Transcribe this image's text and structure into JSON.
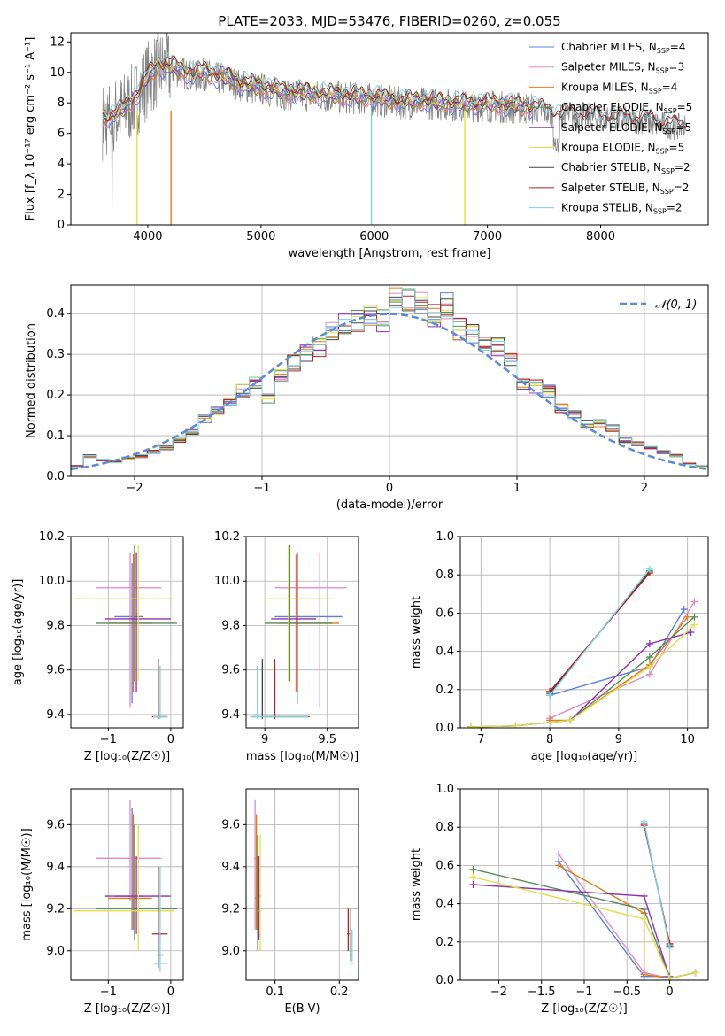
{
  "chart_data": [
    {
      "type": "line",
      "title": "PLATE=2033, MJD=53476, FIBERID=0260, z=0.055",
      "xlabel": "wavelength [Angstrom, rest frame]",
      "ylabel": "Flux [f_λ 10⁻¹⁷ erg cm⁻² s⁻¹ A⁻¹]",
      "xlim": [
        3320,
        8950
      ],
      "ylim": [
        0,
        12.6
      ],
      "xticks": [
        4000,
        5000,
        6000,
        7000,
        8000
      ],
      "yticks": [
        0,
        2,
        4,
        6,
        8,
        10,
        12
      ],
      "grid": false,
      "legend_position": "top-right",
      "data_color": "#808080",
      "data_x": [
        3600,
        3700,
        3800,
        3900,
        4000,
        4100,
        4200,
        4300,
        4400,
        4500,
        4600,
        4700,
        4800,
        4900,
        5000,
        5200,
        5400,
        5600,
        5800,
        6000,
        6200,
        6400,
        6600,
        6800,
        7000,
        7200,
        7400,
        7600,
        7800,
        8000,
        8200,
        8400,
        8500,
        8700
      ],
      "data_y": [
        6.8,
        7.1,
        7.6,
        8.3,
        9.6,
        10.3,
        10.2,
        10.0,
        9.7,
        9.9,
        9.6,
        9.5,
        9.2,
        9.0,
        8.9,
        8.6,
        8.5,
        8.4,
        8.3,
        8.2,
        8.0,
        8.0,
        7.9,
        7.8,
        7.8,
        7.7,
        7.6,
        7.2,
        7.1,
        7.0,
        6.9,
        6.8,
        6.6,
        6.4
      ],
      "series": [
        {
          "name": "Chabrier MILES, N_SSP=4",
          "color": "#5b7fd6"
        },
        {
          "name": "Salpeter MILES, N_SSP=3",
          "color": "#e08ac4"
        },
        {
          "name": "Kroupa MILES, N_SSP=4",
          "color": "#e07b1a"
        },
        {
          "name": "Chabrier ELODIE, N_SSP=5",
          "color": "#5a8a5a"
        },
        {
          "name": "Salpeter ELODIE, N_SSP=5",
          "color": "#8e2fb2"
        },
        {
          "name": "Kroupa ELODIE, N_SSP=5",
          "color": "#dfe04a"
        },
        {
          "name": "Chabrier STELIB, N_SSP=2",
          "color": "#444444"
        },
        {
          "name": "Salpeter STELIB, N_SSP=2",
          "color": "#b22222"
        },
        {
          "name": "Kroupa STELIB, N_SSP=2",
          "color": "#7fd3dd"
        }
      ]
    },
    {
      "type": "step",
      "xlabel": "(data-model)/error",
      "ylabel": "Normed distribution",
      "xlim": [
        -2.5,
        2.5
      ],
      "ylim": [
        0,
        0.47
      ],
      "xticks": [
        -2,
        -1,
        0,
        1,
        2
      ],
      "yticks": [
        0.0,
        0.1,
        0.2,
        0.3,
        0.4
      ],
      "grid": true,
      "legend": "𝒩(0, 1)",
      "legend_position": "top-right",
      "curve_color": "#5b8ad6",
      "bins_left": [
        -2.5,
        -2.4,
        -2.3,
        -2.2,
        -2.1,
        -2.0,
        -1.9,
        -1.8,
        -1.7,
        -1.6,
        -1.5,
        -1.4,
        -1.3,
        -1.2,
        -1.1,
        -1.0,
        -0.9,
        -0.8,
        -0.7,
        -0.6,
        -0.5,
        -0.4,
        -0.3,
        -0.2,
        -0.1,
        0.0,
        0.1,
        0.2,
        0.3,
        0.4,
        0.5,
        0.6,
        0.7,
        0.8,
        0.9,
        1.0,
        1.1,
        1.2,
        1.3,
        1.4,
        1.5,
        1.6,
        1.7,
        1.8,
        1.9,
        2.0,
        2.1,
        2.2,
        2.3,
        2.4
      ],
      "base_values": [
        0.025,
        0.05,
        0.04,
        0.035,
        0.045,
        0.05,
        0.06,
        0.07,
        0.09,
        0.11,
        0.14,
        0.16,
        0.19,
        0.21,
        0.23,
        0.19,
        0.25,
        0.28,
        0.3,
        0.32,
        0.36,
        0.37,
        0.38,
        0.39,
        0.38,
        0.44,
        0.43,
        0.42,
        0.4,
        0.42,
        0.36,
        0.35,
        0.33,
        0.32,
        0.29,
        0.23,
        0.22,
        0.21,
        0.17,
        0.15,
        0.13,
        0.13,
        0.12,
        0.09,
        0.08,
        0.07,
        0.06,
        0.05,
        0.03,
        0.025
      ]
    },
    {
      "type": "scatter",
      "xlabel": "Z [log₁₀(Z/Z☉)]",
      "ylabel": "age [log₁₀(age/yr)]",
      "xlim": [
        -1.6,
        0.2
      ],
      "ylim": [
        9.34,
        10.2
      ],
      "xticks": [
        -1,
        0
      ],
      "yticks": [
        9.4,
        9.6,
        9.8,
        10.0,
        10.2
      ],
      "grid": true
    },
    {
      "type": "scatter",
      "xlabel": "mass [log₁₀(M/M☉)]",
      "ylabel": "",
      "xlim": [
        8.85,
        9.75
      ],
      "ylim": [
        9.34,
        10.2
      ],
      "xticks": [
        9.0,
        9.5
      ],
      "yticks": [
        9.4,
        9.6,
        9.8,
        10.0,
        10.2
      ],
      "grid": true
    },
    {
      "type": "line",
      "xlabel": "age [log₁₀(age/yr)]",
      "ylabel": "mass weight",
      "xlim": [
        6.7,
        10.3
      ],
      "ylim": [
        0,
        1.0
      ],
      "xticks": [
        7,
        8,
        9,
        10
      ],
      "yticks": [
        0.0,
        0.2,
        0.4,
        0.6,
        0.8,
        1.0
      ],
      "grid": true
    },
    {
      "type": "scatter",
      "xlabel": "Z [log₁₀(Z/Z☉)]",
      "ylabel": "mass [log₁₀(M/M☉)]",
      "xlim": [
        -1.6,
        0.2
      ],
      "ylim": [
        8.86,
        9.77
      ],
      "xticks": [
        -1,
        0
      ],
      "yticks": [
        9.0,
        9.2,
        9.4,
        9.6
      ],
      "grid": true
    },
    {
      "type": "scatter",
      "xlabel": "E(B-V)",
      "ylabel": "",
      "xlim": [
        0.055,
        0.23
      ],
      "ylim": [
        8.86,
        9.77
      ],
      "xticks": [
        0.1,
        0.2
      ],
      "yticks": [
        9.0,
        9.2,
        9.4,
        9.6
      ],
      "grid": true
    },
    {
      "type": "line",
      "xlabel": "Z [log₁₀(Z/Z☉)]",
      "ylabel": "mass weight",
      "xlim": [
        -2.45,
        0.45
      ],
      "ylim": [
        0,
        1.0
      ],
      "xticks": [
        -2.0,
        -1.5,
        -1.0,
        -0.5,
        0.0
      ],
      "yticks": [
        0.0,
        0.2,
        0.4,
        0.6,
        0.8,
        1.0
      ],
      "grid": true
    }
  ],
  "models": [
    {
      "name": "Chabrier MILES",
      "color": "#5b7fd6",
      "Z": -0.62,
      "Zerr": [
        -0.9,
        -0.45
      ],
      "age": 9.84,
      "ageErr": [
        9.45,
        10.08
      ],
      "mass": 9.26,
      "massErr": [
        9.08,
        9.68
      ],
      "mErr": [
        9.1,
        9.4
      ],
      "ebv": 0.072,
      "ebvErr": [
        9.1,
        9.45
      ],
      "age_w": [
        [
          8,
          0.17
        ],
        [
          9.45,
          0.32
        ],
        [
          9.95,
          0.62
        ]
      ],
      "Z_w": [
        [
          -1.3,
          0.62
        ],
        [
          -0.3,
          0.02
        ],
        [
          0,
          0.02
        ]
      ]
    },
    {
      "name": "Salpeter MILES",
      "color": "#e08ac4",
      "Z": -0.65,
      "Zerr": [
        -1.2,
        -0.15
      ],
      "age": 9.97,
      "ageErr": [
        9.43,
        10.13
      ],
      "mass": 9.44,
      "massErr": [
        9.08,
        9.72
      ],
      "mErr": [
        9.24,
        9.64
      ],
      "ebv": 0.069,
      "ebvErr": [
        9.1,
        9.72
      ],
      "age_w": [
        [
          8,
          0.05
        ],
        [
          9.45,
          0.28
        ],
        [
          10.1,
          0.66
        ]
      ],
      "Z_w": [
        [
          -1.3,
          0.66
        ],
        [
          -0.3,
          0.04
        ],
        [
          0,
          0.01
        ]
      ]
    },
    {
      "name": "Kroupa MILES",
      "color": "#e07b1a",
      "Z": -0.6,
      "Zerr": [
        -1.0,
        -0.3
      ],
      "age": 9.81,
      "ageErr": [
        9.5,
        10.12
      ],
      "mass": 9.25,
      "massErr": [
        9.1,
        9.65
      ],
      "mErr": [
        9.1,
        9.4
      ],
      "ebv": 0.071,
      "ebvErr": [
        9.1,
        9.65
      ],
      "age_w": [
        [
          8,
          0.04
        ],
        [
          8.3,
          0.04
        ],
        [
          9.45,
          0.33
        ],
        [
          10,
          0.58
        ]
      ],
      "Z_w": [
        [
          -1.3,
          0.6
        ],
        [
          -0.3,
          0.35
        ],
        [
          -0.3,
          0.03
        ],
        [
          0,
          0.01
        ]
      ]
    },
    {
      "name": "Chabrier ELODIE",
      "color": "#5a8a5a",
      "Z": -0.58,
      "Zerr": [
        -1.2,
        0.1
      ],
      "age": 9.81,
      "ageErr": [
        9.55,
        10.16
      ],
      "mass": 9.2,
      "massErr": [
        9.0,
        9.6
      ],
      "mErr": [
        9.05,
        9.35
      ],
      "ebv": 0.073,
      "ebvErr": [
        9.0,
        9.55
      ],
      "age_w": [
        [
          6.85,
          0.005
        ],
        [
          7.5,
          0.01
        ],
        [
          8.3,
          0.04
        ],
        [
          9.45,
          0.37
        ],
        [
          10.1,
          0.58
        ]
      ],
      "Z_w": [
        [
          -2.3,
          0.58
        ],
        [
          -0.3,
          0.37
        ],
        [
          0,
          0.01
        ],
        [
          0.3,
          0.04
        ]
      ]
    },
    {
      "name": "Salpeter ELODIE",
      "color": "#8e2fb2",
      "Z": -0.55,
      "Zerr": [
        -1.05,
        0.0
      ],
      "age": 9.83,
      "ageErr": [
        9.5,
        10.13
      ],
      "mass": 9.26,
      "massErr": [
        9.05,
        9.45
      ],
      "mErr": [
        9.08,
        9.4
      ],
      "ebv": 0.075,
      "ebvErr": [
        9.05,
        9.45
      ],
      "age_w": [
        [
          6.85,
          0.005
        ],
        [
          7.5,
          0.01
        ],
        [
          8.3,
          0.04
        ],
        [
          9.45,
          0.44
        ],
        [
          10.05,
          0.5
        ]
      ],
      "Z_w": [
        [
          -2.3,
          0.5
        ],
        [
          -0.3,
          0.44
        ],
        [
          0,
          0.01
        ],
        [
          0.3,
          0.04
        ]
      ]
    },
    {
      "name": "Kroupa ELODIE",
      "color": "#dfe04a",
      "Z": -0.52,
      "Zerr": [
        -1.55,
        0.05
      ],
      "age": 9.92,
      "ageErr": [
        9.55,
        10.16
      ],
      "mass": 9.19,
      "massErr": [
        9.0,
        9.6
      ],
      "mErr": [
        9.0,
        9.3
      ],
      "ebv": 0.077,
      "ebvErr": [
        9.0,
        9.55
      ],
      "age_w": [
        [
          6.85,
          0.005
        ],
        [
          7.5,
          0.01
        ],
        [
          8.3,
          0.04
        ],
        [
          9.45,
          0.32
        ],
        [
          10.1,
          0.54
        ]
      ],
      "Z_w": [
        [
          -2.3,
          0.54
        ],
        [
          -0.3,
          0.32
        ],
        [
          0,
          0.01
        ],
        [
          0.3,
          0.04
        ]
      ]
    },
    {
      "name": "Chabrier STELIB",
      "color": "#444444",
      "Z": -0.2,
      "Zerr": [
        -0.22,
        -0.12
      ],
      "age": 9.39,
      "ageErr": [
        9.38,
        9.65
      ],
      "mass": 8.98,
      "massErr": [
        8.9,
        9.4
      ],
      "mErr": [
        8.92,
        9.0
      ],
      "ebv": 0.218,
      "ebvErr": [
        8.95,
        9.2
      ],
      "age_w": [
        [
          8,
          0.18
        ],
        [
          9.45,
          0.82
        ]
      ],
      "Z_w": [
        [
          -0.3,
          0.82
        ],
        [
          0,
          0.18
        ]
      ]
    },
    {
      "name": "Salpeter STELIB",
      "color": "#b22222",
      "Z": -0.2,
      "Zerr": [
        -0.3,
        -0.05
      ],
      "age": 9.39,
      "ageErr": [
        9.38,
        9.65
      ],
      "mass": 9.08,
      "massErr": [
        9.0,
        9.4
      ],
      "mErr": [
        9.0,
        9.2
      ],
      "ebv": 0.214,
      "ebvErr": [
        9.0,
        9.2
      ],
      "age_w": [
        [
          8,
          0.19
        ],
        [
          9.45,
          0.81
        ]
      ],
      "Z_w": [
        [
          -0.3,
          0.81
        ],
        [
          0,
          0.19
        ]
      ]
    },
    {
      "name": "Kroupa STELIB",
      "color": "#7fd3dd",
      "Z": -0.17,
      "Zerr": [
        -0.28,
        -0.05
      ],
      "age": 9.39,
      "ageErr": [
        9.38,
        9.62
      ],
      "mass": 8.94,
      "massErr": [
        8.88,
        9.4
      ],
      "mErr": [
        8.9,
        9.0
      ],
      "ebv": 0.22,
      "ebvErr": [
        8.95,
        9.1
      ],
      "age_w": [
        [
          8,
          0.17
        ],
        [
          9.45,
          0.83
        ]
      ],
      "Z_w": [
        [
          -0.3,
          0.83
        ],
        [
          0,
          0.17
        ]
      ]
    }
  ]
}
